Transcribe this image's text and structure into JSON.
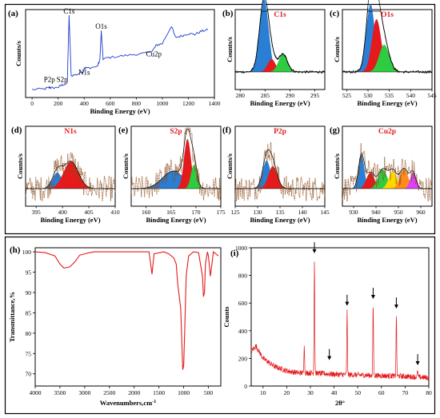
{
  "chart_data": [
    {
      "id": "a",
      "type": "line",
      "panel_label": "(a)",
      "xlabel": "Binding Energy (eV)",
      "ylabel": "Counts/s",
      "xlim": [
        -50,
        1400
      ],
      "xticks": [
        0,
        200,
        400,
        600,
        800,
        1000,
        1200,
        1400
      ],
      "color": "#1f3cc8",
      "annotations": [
        {
          "text": "C1s",
          "x": 284,
          "y": 0.98
        },
        {
          "text": "O1s",
          "x": 531,
          "y": 0.78
        },
        {
          "text": "N1s",
          "x": 400,
          "y": 0.18
        },
        {
          "text": "Cu2p",
          "x": 935,
          "y": 0.42
        },
        {
          "text": "P2p",
          "x": 133,
          "y": 0.04
        },
        {
          "text": "S2p",
          "x": 230,
          "y": 0.04
        }
      ],
      "series": [
        {
          "x": [
            0,
            100,
            133,
            150,
            200,
            230,
            270,
            284,
            300,
            350,
            395,
            400,
            420,
            500,
            520,
            531,
            545,
            600,
            700,
            800,
            900,
            935,
            955,
            1000,
            1070,
            1100,
            1150,
            1200,
            1250,
            1300,
            1350
          ],
          "y": [
            0.02,
            0.03,
            0.05,
            0.04,
            0.05,
            0.08,
            0.1,
            0.98,
            0.2,
            0.22,
            0.26,
            0.3,
            0.3,
            0.32,
            0.4,
            0.78,
            0.42,
            0.44,
            0.46,
            0.48,
            0.5,
            0.55,
            0.6,
            0.62,
            0.85,
            0.7,
            0.72,
            0.75,
            0.74,
            0.78,
            0.8
          ]
        }
      ]
    },
    {
      "id": "b",
      "type": "area",
      "panel_label": "(b)",
      "title": "C1s",
      "xlabel": "Binding Energy (eV)",
      "ylabel": "Counts/s",
      "xlim": [
        279,
        297
      ],
      "xticks": [
        280,
        285,
        290,
        295
      ],
      "peaks": [
        {
          "center": 284.8,
          "height": 0.92,
          "width": 0.9,
          "color": "#2a7fd4"
        },
        {
          "center": 286.3,
          "height": 0.16,
          "width": 0.8,
          "color": "#e41a1c"
        },
        {
          "center": 288.6,
          "height": 0.22,
          "width": 0.9,
          "color": "#2ecc40"
        }
      ]
    },
    {
      "id": "c",
      "type": "area",
      "panel_label": "(c)",
      "title": "O1s",
      "xlabel": "Binding Energy (eV)",
      "ylabel": "Counts/s",
      "xlim": [
        524,
        545
      ],
      "xticks": [
        525,
        530,
        535,
        540,
        545
      ],
      "peaks": [
        {
          "center": 530.6,
          "height": 0.85,
          "width": 1.0,
          "color": "#2a7fd4"
        },
        {
          "center": 532.0,
          "height": 0.66,
          "width": 1.1,
          "color": "#e41a1c"
        },
        {
          "center": 533.8,
          "height": 0.34,
          "width": 1.2,
          "color": "#2ecc40"
        }
      ]
    },
    {
      "id": "d",
      "type": "area",
      "panel_label": "(d)",
      "title": "N1s",
      "xlabel": "Binding Energy (eV)",
      "ylabel": "Counts/s",
      "xlim": [
        393,
        410
      ],
      "xticks": [
        395,
        400,
        405,
        410
      ],
      "peaks": [
        {
          "center": 399.0,
          "height": 0.2,
          "width": 0.9,
          "color": "#2a7fd4"
        },
        {
          "center": 401.6,
          "height": 0.34,
          "width": 1.4,
          "color": "#e41a1c"
        }
      ]
    },
    {
      "id": "e",
      "type": "area",
      "panel_label": "(e)",
      "title": "S2p",
      "xlabel": "Binding Energy (eV)",
      "ylabel": "Counts/s",
      "xlim": [
        157,
        175
      ],
      "xticks": [
        160,
        165,
        170,
        175
      ],
      "peaks": [
        {
          "center": 165.5,
          "height": 0.22,
          "width": 2.2,
          "color": "#2a7fd4"
        },
        {
          "center": 168.3,
          "height": 0.62,
          "width": 0.7,
          "color": "#e41a1c"
        },
        {
          "center": 169.6,
          "height": 0.3,
          "width": 0.6,
          "color": "#2ecc40"
        }
      ]
    },
    {
      "id": "f",
      "type": "area",
      "panel_label": "(f)",
      "title": "P2p",
      "xlabel": "Binding Energy (eV)",
      "ylabel": "Counts/s",
      "xlim": [
        125,
        145
      ],
      "xticks": [
        125,
        130,
        135,
        140,
        145
      ],
      "peaks": [
        {
          "center": 132.0,
          "height": 0.35,
          "width": 0.9,
          "color": "#2a7fd4"
        },
        {
          "center": 133.4,
          "height": 0.28,
          "width": 1.0,
          "color": "#e41a1c"
        }
      ]
    },
    {
      "id": "g",
      "type": "area",
      "panel_label": "(g)",
      "title": "Cu2p",
      "xlabel": "Binding Energy (eV)",
      "ylabel": "Counts/s",
      "xlim": [
        925,
        965
      ],
      "xticks": [
        930,
        940,
        950,
        960
      ],
      "peaks": [
        {
          "center": 933.5,
          "height": 0.42,
          "width": 1.3,
          "color": "#2a7fd4"
        },
        {
          "center": 937.5,
          "height": 0.2,
          "width": 1.8,
          "color": "#e41a1c"
        },
        {
          "center": 943.0,
          "height": 0.24,
          "width": 2.0,
          "color": "#2ecc40"
        },
        {
          "center": 947.5,
          "height": 0.22,
          "width": 1.8,
          "color": "#ffd700"
        },
        {
          "center": 952.5,
          "height": 0.25,
          "width": 1.8,
          "color": "#ff8c1a"
        },
        {
          "center": 956.5,
          "height": 0.2,
          "width": 1.3,
          "color": "#e040fb"
        }
      ]
    },
    {
      "id": "h",
      "type": "line",
      "panel_label": "(h)",
      "xlabel": "Wavenumbers,cm",
      "xlabel_sup": "-1",
      "ylabel": "Transmittance,%",
      "xlim": [
        4000,
        250
      ],
      "xticks": [
        4000,
        3500,
        3000,
        2500,
        2000,
        1500,
        1000,
        500
      ],
      "ylim": [
        67,
        101
      ],
      "yticks": [
        70,
        75,
        80,
        85,
        90,
        95,
        100
      ],
      "color": "#e41a1c",
      "series": [
        {
          "x": [
            4000,
            3800,
            3600,
            3500,
            3420,
            3300,
            3200,
            3100,
            3000,
            2900,
            2800,
            2500,
            2000,
            1700,
            1640,
            1600,
            1400,
            1300,
            1200,
            1150,
            1120,
            1080,
            1060,
            1040,
            1020,
            1000,
            980,
            950,
            900,
            800,
            700,
            620,
            600,
            580,
            560,
            520,
            500,
            460,
            420,
            400,
            350,
            300
          ],
          "y": [
            100,
            99.8,
            99,
            97,
            96,
            96.3,
            97.5,
            99.2,
            99.5,
            99.8,
            100,
            100,
            100,
            100,
            94.5,
            99.5,
            100,
            99.5,
            98.5,
            97,
            92,
            88,
            86,
            79,
            71,
            72,
            80,
            94,
            99,
            100,
            99.8,
            94,
            89,
            90,
            97,
            100,
            99,
            94,
            98,
            100,
            99.5,
            99
          ]
        }
      ]
    },
    {
      "id": "i",
      "type": "line",
      "panel_label": "(i)",
      "xlabel": "2θ°",
      "ylabel": "Counts",
      "xlim": [
        5,
        80
      ],
      "xticks": [
        10,
        20,
        30,
        40,
        50,
        60,
        70,
        80
      ],
      "ylim": [
        0,
        1000
      ],
      "yticks": [
        0,
        200,
        400,
        600,
        800,
        1000
      ],
      "color": "#e41a1c",
      "baseline": [
        [
          5,
          250
        ],
        [
          7,
          290
        ],
        [
          10,
          200
        ],
        [
          15,
          140
        ],
        [
          20,
          110
        ],
        [
          25,
          95
        ],
        [
          30,
          95
        ],
        [
          35,
          90
        ],
        [
          40,
          85
        ],
        [
          50,
          80
        ],
        [
          60,
          75
        ],
        [
          70,
          70
        ],
        [
          80,
          60
        ]
      ],
      "sharp_peaks": [
        {
          "x": 27.4,
          "y": 310
        },
        {
          "x": 31.7,
          "y": 920
        },
        {
          "x": 45.5,
          "y": 540
        },
        {
          "x": 56.5,
          "y": 590
        },
        {
          "x": 66.3,
          "y": 520
        },
        {
          "x": 75.3,
          "y": 110
        }
      ],
      "arrows": [
        31.7,
        38.0,
        45.5,
        56.5,
        66.3,
        75.3
      ]
    }
  ]
}
